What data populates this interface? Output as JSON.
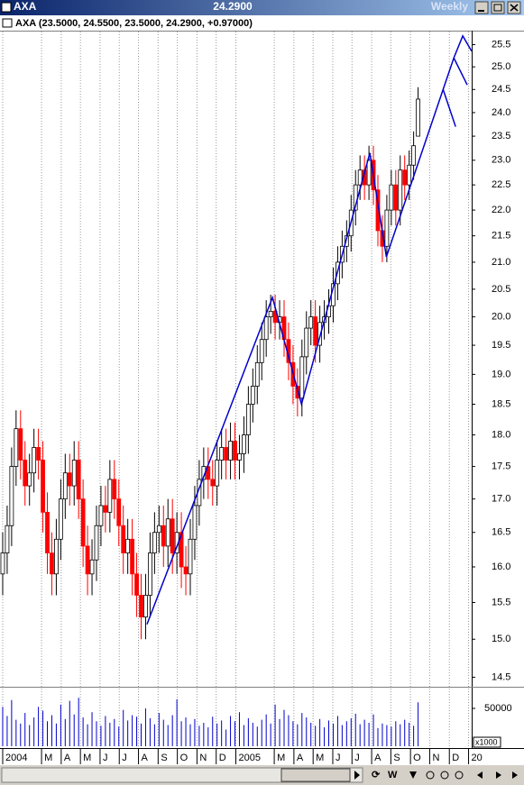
{
  "chart_data": {
    "type": "candlestick",
    "title": "AXA",
    "last_price_label": "24.2900",
    "period": "Weekly",
    "legend_text": "AXA (23.5000, 24.5500, 23.5000, 24.2900, +0.97000)",
    "log_y": true,
    "grid_x": true,
    "up_color": "#ffffff",
    "down_color": "#ff0000",
    "line_color": "#0000cc",
    "xlim": [
      -0.4,
      105
    ],
    "ylim": [
      14.4,
      25.8
    ],
    "xticks": [
      {
        "value": 0,
        "label": "2004"
      },
      {
        "value": 8.7,
        "label": "M"
      },
      {
        "value": 13.1,
        "label": "A"
      },
      {
        "value": 17.4,
        "label": "M"
      },
      {
        "value": 21.8,
        "label": "J"
      },
      {
        "value": 26.1,
        "label": "J"
      },
      {
        "value": 30.4,
        "label": "A"
      },
      {
        "value": 34.8,
        "label": "S"
      },
      {
        "value": 39.1,
        "label": "O"
      },
      {
        "value": 43.5,
        "label": "N"
      },
      {
        "value": 47.8,
        "label": "D"
      },
      {
        "value": 52.2,
        "label": "2005"
      },
      {
        "value": 60.8,
        "label": "M"
      },
      {
        "value": 65.2,
        "label": "A"
      },
      {
        "value": 69.5,
        "label": "M"
      },
      {
        "value": 73.9,
        "label": "J"
      },
      {
        "value": 78.2,
        "label": "J"
      },
      {
        "value": 82.6,
        "label": "A"
      },
      {
        "value": 86.9,
        "label": "S"
      },
      {
        "value": 91.3,
        "label": "O"
      },
      {
        "value": 95.6,
        "label": "N"
      },
      {
        "value": 100,
        "label": "D"
      },
      {
        "value": 104.3,
        "label": "20"
      }
    ],
    "yticks": [
      14.5,
      {
        "value": 15,
        "label": "15.0"
      },
      15.5,
      {
        "value": 16,
        "label": "16.0"
      },
      16.5,
      {
        "value": 17,
        "label": "17.0"
      },
      17.5,
      {
        "value": 18,
        "label": "18.0"
      },
      18.5,
      {
        "value": 19,
        "label": "19.0"
      },
      19.5,
      {
        "value": 20,
        "label": "20.0"
      },
      20.5,
      {
        "value": 21,
        "label": "21.0"
      },
      21.5,
      {
        "value": 22,
        "label": "22.0"
      },
      22.5,
      {
        "value": 23,
        "label": "23.0"
      },
      23.5,
      {
        "value": 24,
        "label": "24.0"
      },
      24.5,
      {
        "value": 25,
        "label": "25.0"
      },
      25.5
    ],
    "x": [
      0,
      1,
      2,
      3,
      4,
      5,
      6,
      7,
      8,
      9,
      10,
      11,
      12,
      13,
      14,
      15,
      16,
      17,
      18,
      19,
      20,
      21,
      22,
      23,
      24,
      25,
      26,
      27,
      28,
      29,
      30,
      31,
      32,
      33,
      34,
      35,
      36,
      37,
      38,
      39,
      40,
      41,
      42,
      43,
      44,
      45,
      46,
      47,
      48,
      49,
      50,
      51,
      52,
      53,
      54,
      55,
      56,
      57,
      58,
      59,
      60,
      61,
      62,
      63,
      64,
      65,
      66,
      67,
      68,
      69,
      70,
      71,
      72,
      73,
      74,
      75,
      76,
      77,
      78,
      79,
      80,
      81,
      82,
      83,
      84,
      85,
      86,
      87,
      88,
      89,
      90,
      91,
      92,
      93
    ],
    "open": [
      15.9,
      16.2,
      16.6,
      17.5,
      18.1,
      17.6,
      17.2,
      17.4,
      17.8,
      17.6,
      16.8,
      16.2,
      15.9,
      16.4,
      17.0,
      17.4,
      17.2,
      17.6,
      17.0,
      16.3,
      15.9,
      16.1,
      16.6,
      16.9,
      16.8,
      17.3,
      17.0,
      16.6,
      16.2,
      16.4,
      15.9,
      15.6,
      15.3,
      15.6,
      16.2,
      16.5,
      16.6,
      16.3,
      16.7,
      16.2,
      16.5,
      16.0,
      15.9,
      16.4,
      16.9,
      17.3,
      17.5,
      17.3,
      17.2,
      17.6,
      17.8,
      17.6,
      17.9,
      17.6,
      17.7,
      18.0,
      18.5,
      18.8,
      19.2,
      19.6,
      20.0,
      20.1,
      19.9,
      20.0,
      19.6,
      19.2,
      18.8,
      18.6,
      19.3,
      19.8,
      20.0,
      19.5,
      19.9,
      20.0,
      20.2,
      20.6,
      21.0,
      21.3,
      21.5,
      22.0,
      22.5,
      22.8,
      22.5,
      23.0,
      22.4,
      21.6,
      21.3,
      22.0,
      22.5,
      22.0,
      22.8,
      22.5,
      22.9,
      23.5
    ],
    "high": [
      16.5,
      16.9,
      17.8,
      18.4,
      18.4,
      17.9,
      17.7,
      18.1,
      18.1,
      17.9,
      17.1,
      16.5,
      16.7,
      17.3,
      17.7,
      17.7,
      17.9,
      17.9,
      17.3,
      16.6,
      16.4,
      16.9,
      17.2,
      17.2,
      17.6,
      17.6,
      17.3,
      16.9,
      16.7,
      16.7,
      16.2,
      15.9,
      15.9,
      16.5,
      16.8,
      16.9,
      16.9,
      17.0,
      17.0,
      16.8,
      16.8,
      16.3,
      16.7,
      17.2,
      17.6,
      17.8,
      17.8,
      17.6,
      17.9,
      18.1,
      18.1,
      18.2,
      18.2,
      18.0,
      18.3,
      18.8,
      19.1,
      19.5,
      19.9,
      20.3,
      20.4,
      20.4,
      20.3,
      20.3,
      19.9,
      19.5,
      19.1,
      19.6,
      20.1,
      20.3,
      20.3,
      20.2,
      20.3,
      20.5,
      20.9,
      21.3,
      21.6,
      21.8,
      22.3,
      22.8,
      23.1,
      23.1,
      23.3,
      23.3,
      22.7,
      21.9,
      22.3,
      22.8,
      22.8,
      23.1,
      23.1,
      23.2,
      23.6,
      24.55
    ],
    "low": [
      15.6,
      15.9,
      16.3,
      17.2,
      17.3,
      16.9,
      16.9,
      17.1,
      17.3,
      16.5,
      15.9,
      15.6,
      15.6,
      16.1,
      16.7,
      16.9,
      16.9,
      16.7,
      16.0,
      15.6,
      15.6,
      15.8,
      16.3,
      16.5,
      16.5,
      16.7,
      16.3,
      15.9,
      15.9,
      15.6,
      15.3,
      15.0,
      15.0,
      15.3,
      15.9,
      16.2,
      16.0,
      16.0,
      15.9,
      15.9,
      15.7,
      15.6,
      15.6,
      16.1,
      16.6,
      17.0,
      17.0,
      16.9,
      16.9,
      17.3,
      17.3,
      17.3,
      17.3,
      17.3,
      17.4,
      17.7,
      18.2,
      18.5,
      18.9,
      19.3,
      19.7,
      19.6,
      19.6,
      19.3,
      18.9,
      18.5,
      18.3,
      18.3,
      19.0,
      19.5,
      19.2,
      19.2,
      19.6,
      19.7,
      19.9,
      20.3,
      20.7,
      21.0,
      21.2,
      21.7,
      22.2,
      22.2,
      22.2,
      22.1,
      21.3,
      21.0,
      21.0,
      21.7,
      21.7,
      21.7,
      22.2,
      22.2,
      22.6,
      23.5
    ],
    "close": [
      16.2,
      16.6,
      17.5,
      18.1,
      17.6,
      17.2,
      17.4,
      17.8,
      17.6,
      16.8,
      16.2,
      15.9,
      16.4,
      17.0,
      17.4,
      17.2,
      17.6,
      17.0,
      16.3,
      15.9,
      16.1,
      16.6,
      16.9,
      16.8,
      17.3,
      17.0,
      16.6,
      16.2,
      16.4,
      15.9,
      15.6,
      15.3,
      15.6,
      16.2,
      16.5,
      16.6,
      16.3,
      16.7,
      16.2,
      16.5,
      16.0,
      15.9,
      16.4,
      16.9,
      17.3,
      17.5,
      17.3,
      17.2,
      17.6,
      17.8,
      17.6,
      17.9,
      17.6,
      17.7,
      18.0,
      18.5,
      18.8,
      19.2,
      19.6,
      20.0,
      20.1,
      19.9,
      20.0,
      19.6,
      19.2,
      18.8,
      18.6,
      19.3,
      19.8,
      20.0,
      19.5,
      19.9,
      20.0,
      20.2,
      20.6,
      21.0,
      21.3,
      21.5,
      22.0,
      22.5,
      22.8,
      22.5,
      23.0,
      22.4,
      21.6,
      21.3,
      22.0,
      22.5,
      22.0,
      22.8,
      22.5,
      22.9,
      23.3,
      24.29
    ],
    "zigzag": {
      "x": [
        32.3,
        60.4,
        66.9,
        82.2,
        85.9,
        98.6,
        101,
        103,
        105
      ],
      "y": [
        15.2,
        20.35,
        18.5,
        23.15,
        21.1,
        24.5,
        25.2,
        25.7,
        25.35
      ]
    },
    "projections": [
      {
        "x": [
          98.6,
          101.4
        ],
        "y": [
          24.5,
          23.7
        ]
      },
      {
        "x": [
          101,
          104
        ],
        "y": [
          25.2,
          24.6
        ]
      }
    ],
    "volume": {
      "values": [
        52000,
        40000,
        61000,
        35000,
        30000,
        44000,
        28000,
        38000,
        52000,
        47000,
        33000,
        41000,
        30000,
        55000,
        36000,
        60000,
        42000,
        64000,
        38000,
        29000,
        45000,
        33000,
        27000,
        40000,
        31000,
        36000,
        26000,
        48000,
        34000,
        41000,
        39000,
        30000,
        50000,
        37000,
        29000,
        44000,
        35000,
        28000,
        41000,
        62000,
        33000,
        38000,
        29000,
        36000,
        27000,
        31000,
        25000,
        39000,
        30000,
        34000,
        22000,
        40000,
        33000,
        45000,
        28000,
        37000,
        31000,
        26000,
        35000,
        42000,
        30000,
        55000,
        36000,
        48000,
        41000,
        33000,
        29000,
        44000,
        38000,
        31000,
        27000,
        36000,
        25000,
        34000,
        30000,
        40000,
        28000,
        33000,
        37000,
        43000,
        29000,
        35000,
        31000,
        42000,
        24000,
        30000,
        28000,
        26000,
        33000,
        29000,
        35000,
        31000,
        27000,
        58000
      ],
      "ylim": [
        0,
        75000
      ],
      "yticks": [
        50000
      ],
      "multiplier_label": "x1000",
      "color": "#0000cc"
    },
    "toolbar_period": "W"
  }
}
